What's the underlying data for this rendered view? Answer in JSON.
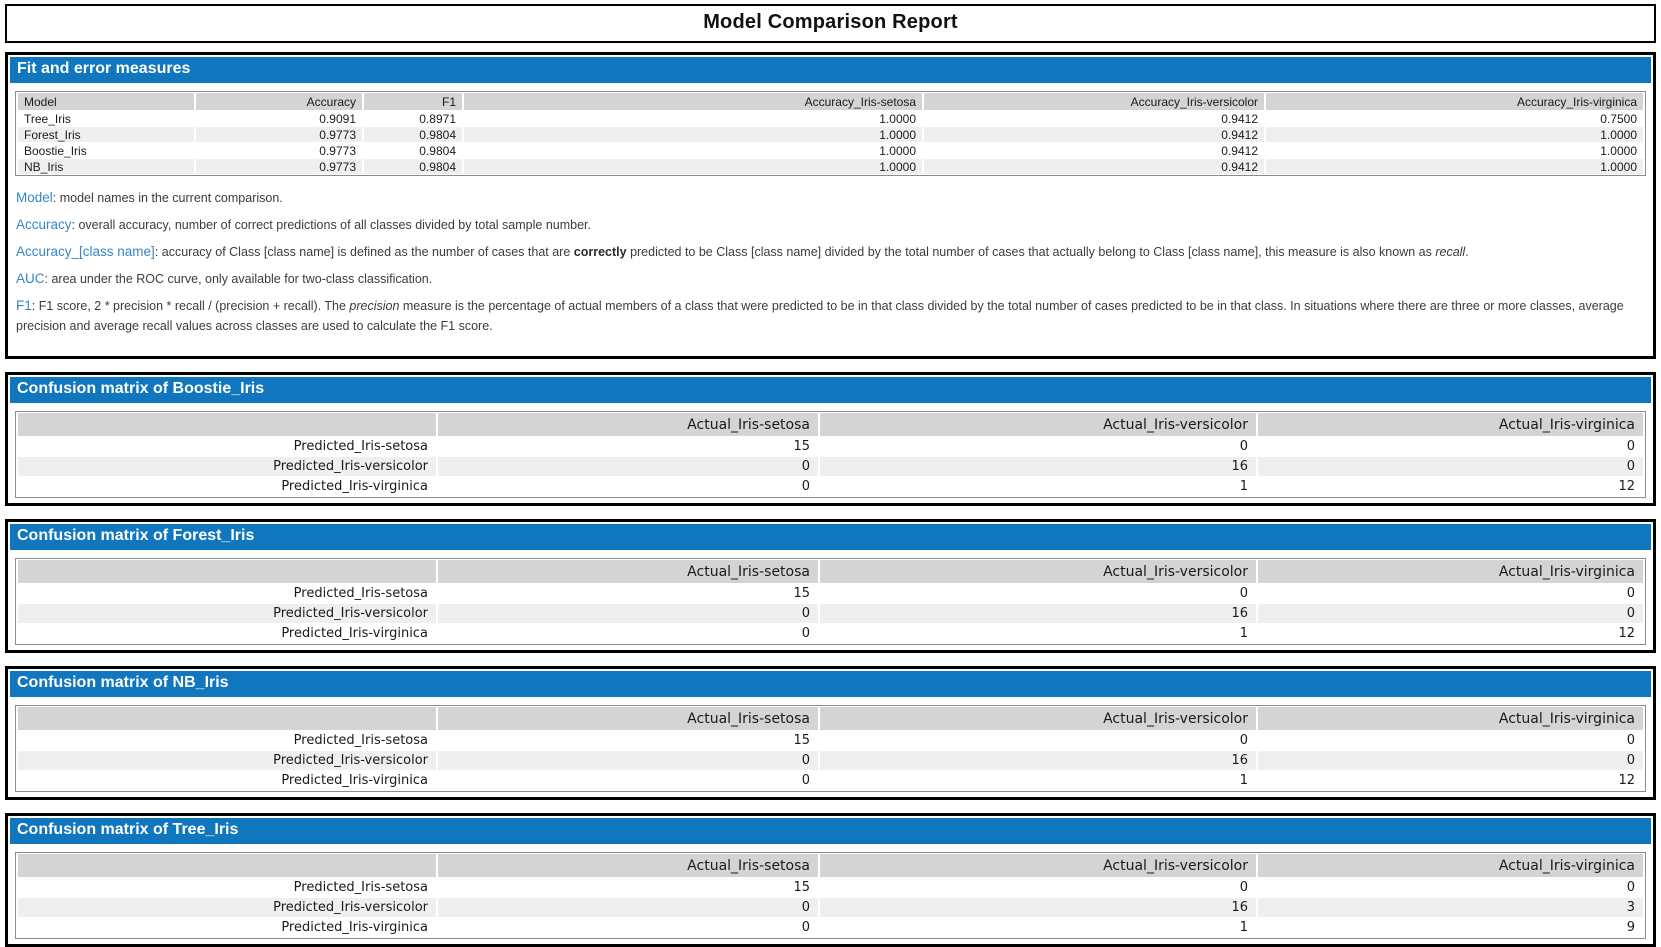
{
  "title": "Model Comparison Report",
  "colors": {
    "section_header_bg": "#1076BD",
    "table_header_bg": "#D4D4D4",
    "row_alt_bg": "#EFEFEF",
    "term_blue": "#3585C5"
  },
  "fit_section": {
    "header": "Fit and error measures",
    "table": {
      "columns": [
        "Model",
        "Accuracy",
        "F1",
        "Accuracy_Iris-setosa",
        "Accuracy_Iris-versicolor",
        "Accuracy_Iris-virginica"
      ],
      "rows": [
        [
          "Tree_Iris",
          "0.9091",
          "0.8971",
          "1.0000",
          "0.9412",
          "0.7500"
        ],
        [
          "Forest_Iris",
          "0.9773",
          "0.9804",
          "1.0000",
          "0.9412",
          "1.0000"
        ],
        [
          "Boostie_Iris",
          "0.9773",
          "0.9804",
          "1.0000",
          "0.9412",
          "1.0000"
        ],
        [
          "NB_Iris",
          "0.9773",
          "0.9804",
          "1.0000",
          "0.9412",
          "1.0000"
        ]
      ]
    },
    "definitions": [
      {
        "term": "Model",
        "parts": [
          {
            "text": "model names in the current comparison."
          }
        ]
      },
      {
        "term": "Accuracy",
        "parts": [
          {
            "text": "overall accuracy, number of correct predictions of all classes divided by total sample number."
          }
        ]
      },
      {
        "term": "Accuracy_[class name]",
        "parts": [
          {
            "text": "accuracy of Class [class name] is defined as the number of cases that are "
          },
          {
            "text": "correctly",
            "bold": true
          },
          {
            "text": " predicted to be Class [class name] divided by the total number of cases that actually belong to Class [class name], this measure is also known as "
          },
          {
            "text": "recall",
            "italic": true
          },
          {
            "text": "."
          }
        ]
      },
      {
        "term": "AUC",
        "parts": [
          {
            "text": "area under the ROC curve, only available for two-class classification."
          }
        ]
      },
      {
        "term": "F1",
        "parts": [
          {
            "text": "F1 score, 2 * precision * recall / (precision + recall). The "
          },
          {
            "text": "precision",
            "italic": true
          },
          {
            "text": " measure is the percentage of actual members of a class that were predicted to be in that class divided by the total number of cases predicted to be in that class. In situations where there are three or more classes, average precision and average recall values across classes are used to calculate the F1 score."
          }
        ]
      }
    ]
  },
  "confusion_sections": [
    {
      "model": "Boostie_Iris",
      "header": "Confusion matrix of Boostie_Iris",
      "columns": [
        "",
        "Actual_Iris-setosa",
        "Actual_Iris-versicolor",
        "Actual_Iris-virginica"
      ],
      "rows": [
        [
          "Predicted_Iris-setosa",
          "15",
          "0",
          "0"
        ],
        [
          "Predicted_Iris-versicolor",
          "0",
          "16",
          "0"
        ],
        [
          "Predicted_Iris-virginica",
          "0",
          "1",
          "12"
        ]
      ]
    },
    {
      "model": "Forest_Iris",
      "header": "Confusion matrix of Forest_Iris",
      "columns": [
        "",
        "Actual_Iris-setosa",
        "Actual_Iris-versicolor",
        "Actual_Iris-virginica"
      ],
      "rows": [
        [
          "Predicted_Iris-setosa",
          "15",
          "0",
          "0"
        ],
        [
          "Predicted_Iris-versicolor",
          "0",
          "16",
          "0"
        ],
        [
          "Predicted_Iris-virginica",
          "0",
          "1",
          "12"
        ]
      ]
    },
    {
      "model": "NB_Iris",
      "header": "Confusion matrix of NB_Iris",
      "columns": [
        "",
        "Actual_Iris-setosa",
        "Actual_Iris-versicolor",
        "Actual_Iris-virginica"
      ],
      "rows": [
        [
          "Predicted_Iris-setosa",
          "15",
          "0",
          "0"
        ],
        [
          "Predicted_Iris-versicolor",
          "0",
          "16",
          "0"
        ],
        [
          "Predicted_Iris-virginica",
          "0",
          "1",
          "12"
        ]
      ]
    },
    {
      "model": "Tree_Iris",
      "header": "Confusion matrix of Tree_Iris",
      "columns": [
        "",
        "Actual_Iris-setosa",
        "Actual_Iris-versicolor",
        "Actual_Iris-virginica"
      ],
      "rows": [
        [
          "Predicted_Iris-setosa",
          "15",
          "0",
          "0"
        ],
        [
          "Predicted_Iris-versicolor",
          "0",
          "16",
          "3"
        ],
        [
          "Predicted_Iris-virginica",
          "0",
          "1",
          "9"
        ]
      ]
    }
  ]
}
